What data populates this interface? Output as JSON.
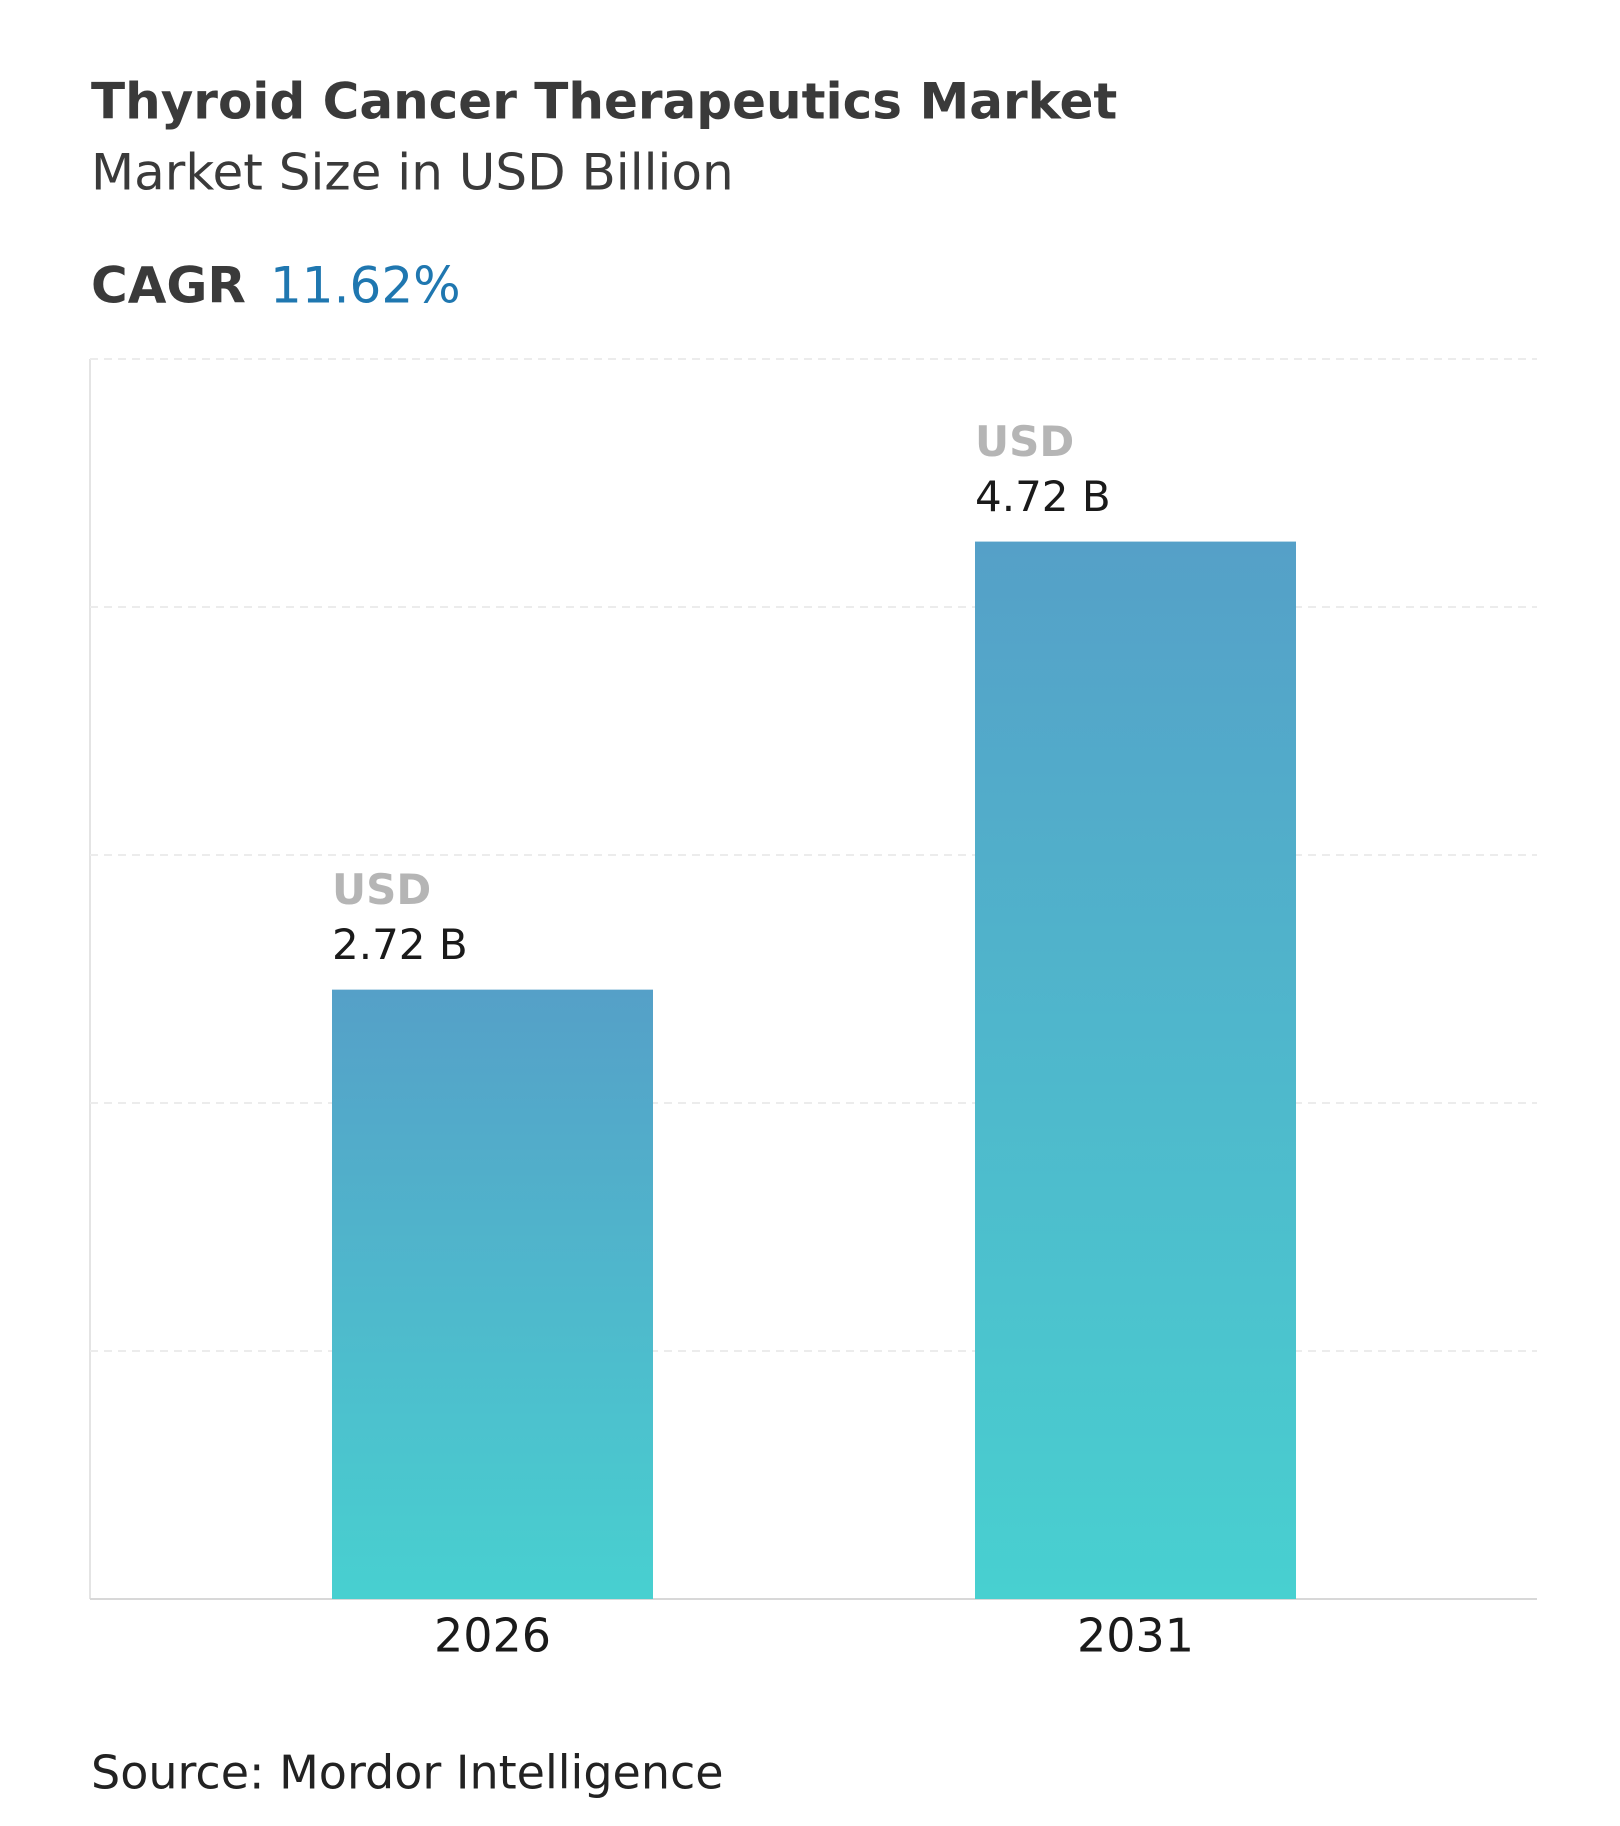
{
  "chart_data": {
    "type": "bar",
    "title": "Thyroid Cancer Therapeutics Market",
    "subtitle": "Market Size in USD Billion",
    "cagr_label": "CAGR",
    "cagr_value": "11.62%",
    "categories": [
      "2026",
      "2031"
    ],
    "values": [
      2.72,
      4.72
    ],
    "value_labels": [
      "2.72 B",
      "4.72 B"
    ],
    "value_unit": "USD",
    "colors": [
      "#55a0c8",
      "#48d0d0"
    ],
    "ylim": [
      0,
      5.535
    ],
    "yticks": [
      0,
      1.107,
      2.214,
      3.321,
      4.428,
      5.535
    ],
    "grid": true,
    "source": "Source: Mordor Intelligence"
  }
}
